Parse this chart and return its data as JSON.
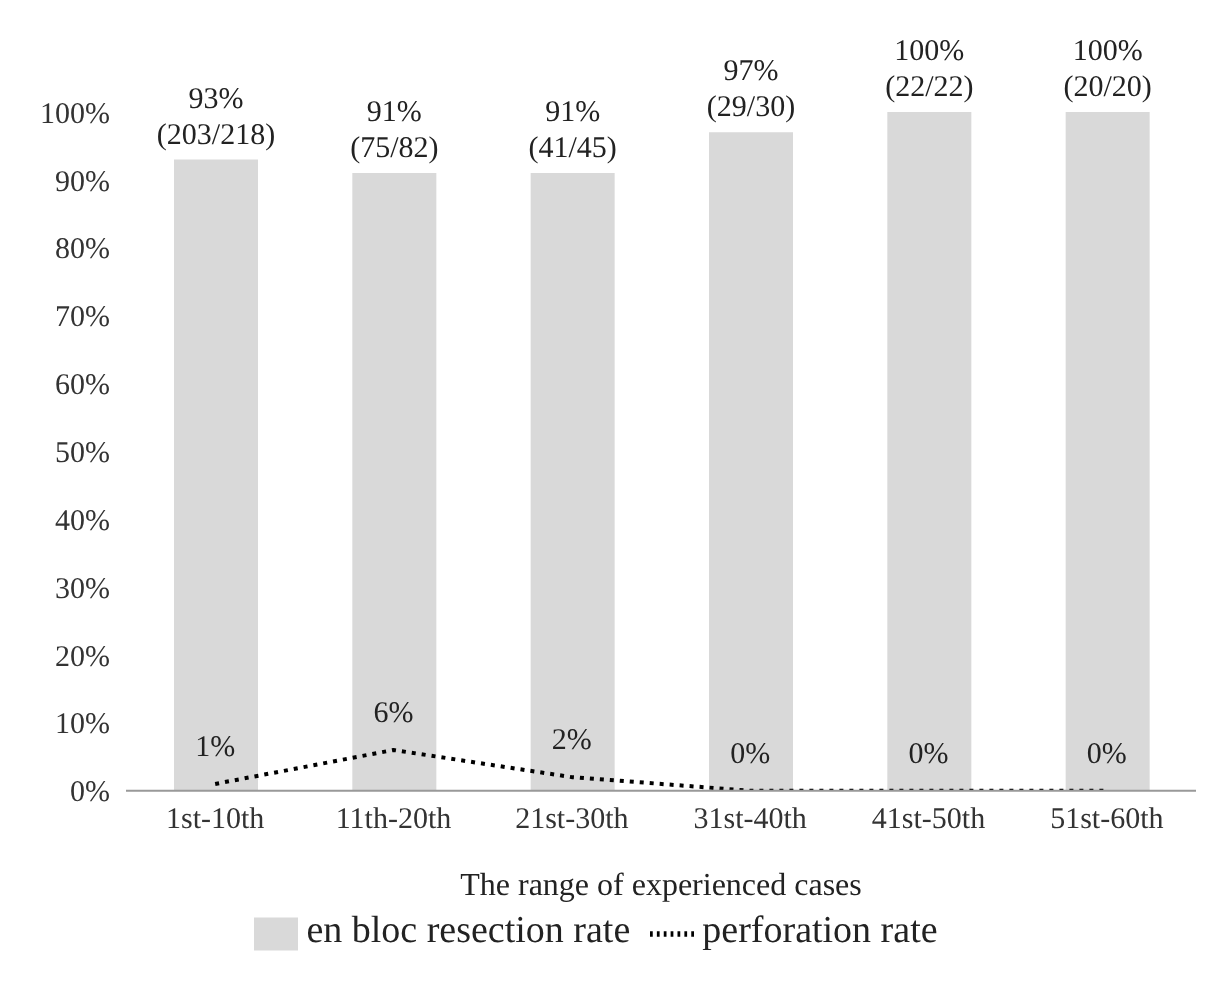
{
  "chart_data": {
    "type": "bar",
    "xlabel": "The range of experienced cases",
    "categories": [
      "1st-10th",
      "11th-20th",
      "21st-30th",
      "31st-40th",
      "41st-50th",
      "51st-60th"
    ],
    "series": [
      {
        "name": "en bloc resection rate",
        "color": "#d9d9d9",
        "values": [
          93,
          91,
          91,
          97,
          100,
          100
        ],
        "value_labels": [
          "93%\n(203/218)",
          "91%\n(75/82)",
          "91%\n(41/45)",
          "97%\n(29/30)",
          "100%\n(22/22)",
          "100%\n(20/20)"
        ]
      },
      {
        "name": "perforation rate",
        "type": "line",
        "color": "#000000",
        "line_style": "dotted",
        "values": [
          1,
          6,
          2,
          0,
          0,
          0
        ],
        "value_labels": [
          "1%",
          "6%",
          "2%",
          "0%",
          "0%",
          "0%"
        ]
      }
    ],
    "ylim": [
      0,
      100
    ],
    "yticks": [
      {
        "value": 0,
        "label": "0%"
      },
      {
        "value": 10,
        "label": "10%"
      },
      {
        "value": 20,
        "label": "20%"
      },
      {
        "value": 30,
        "label": "30%"
      },
      {
        "value": 40,
        "label": "40%"
      },
      {
        "value": 50,
        "label": "50%"
      },
      {
        "value": 60,
        "label": "60%"
      },
      {
        "value": 70,
        "label": "70%"
      },
      {
        "value": 80,
        "label": "80%"
      },
      {
        "value": 90,
        "label": "90%"
      },
      {
        "value": 100,
        "label": "100%"
      }
    ],
    "grid": false,
    "legend": "bottom",
    "marker": "none"
  }
}
